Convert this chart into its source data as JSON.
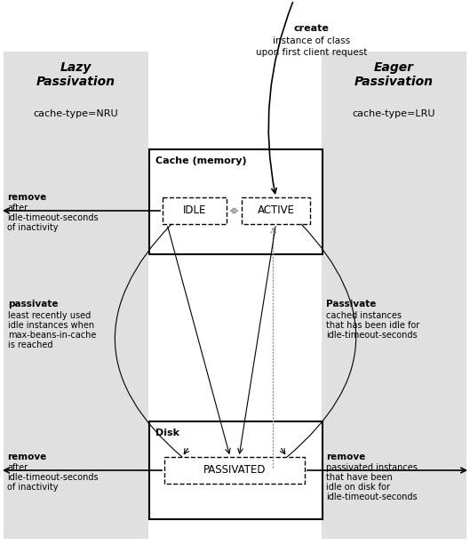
{
  "bg_color": "#e0e0e0",
  "white": "#ffffff",
  "black": "#000000",
  "dark_gray": "#555555",
  "arrow_gray": "#999999",
  "fig_width": 5.29,
  "fig_height": 6.13,
  "cache_nru": "cache-type=NRU",
  "cache_lru": "cache-type=LRU",
  "cache_box_title": "Cache (memory)",
  "disk_box_title": "Disk",
  "idle_label": "IDLE",
  "active_label": "ACTIVE",
  "passivated_label": "PASSIVATED"
}
